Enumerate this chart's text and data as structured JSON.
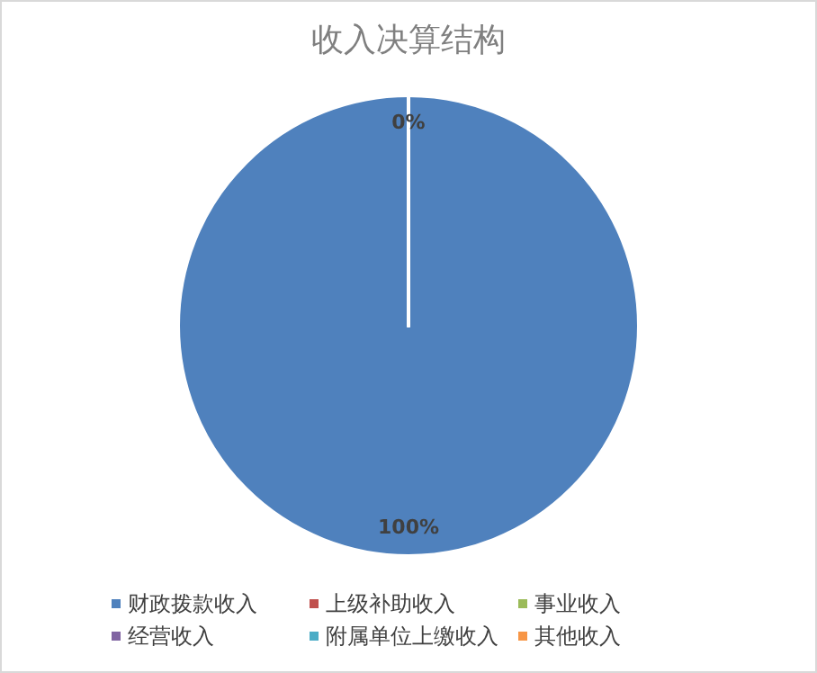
{
  "chart_data": {
    "type": "pie",
    "title": "收入决算结构",
    "categories": [
      "财政拨款收入",
      "上级补助收入",
      "事业收入",
      "经营收入",
      "附属单位上缴收入",
      "其他收入"
    ],
    "values": [
      100,
      0,
      0,
      0,
      0,
      0
    ],
    "colors": [
      "#4f81bd",
      "#c0504d",
      "#9bbb59",
      "#8064a2",
      "#4bacc6",
      "#f79646"
    ],
    "value_labels": [
      "100%",
      "0%",
      null,
      null,
      null,
      null
    ],
    "legend": "bottom"
  }
}
